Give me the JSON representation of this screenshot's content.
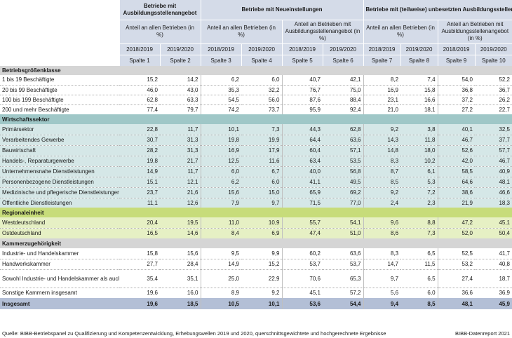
{
  "header": {
    "groups": [
      "Betriebe mit Ausbildungsstellenangebot",
      "Betriebe mit Neueinstellungen",
      "Betriebe mit (teilweise) unbesetzten Ausbildungsstellen"
    ],
    "sub_share_all": "Anteil an allen Betrieben (in %)",
    "sub_share_offer": "Anteil an Betrieben mit Ausbildungsstellenangebot (in %)",
    "years": [
      "2018/2019",
      "2019/2020",
      "2018/2019",
      "2019/2020",
      "2018/2019",
      "2019/2020",
      "2018/2019",
      "2019/2020",
      "2018/2019",
      "2019/2020"
    ],
    "columns": [
      "Spalte 1",
      "Spalte 2",
      "Spalte 3",
      "Spalte 4",
      "Spalte 5",
      "Spalte 6",
      "Spalte 7",
      "Spalte 8",
      "Spalte 9",
      "Spalte 10"
    ]
  },
  "sections": [
    {
      "title": "Betriebsgrößenklasse",
      "rows": [
        {
          "label": "1 bis 19 Beschäftigte",
          "values": [
            "15,2",
            "14,2",
            "6,2",
            "6,0",
            "40,7",
            "42,1",
            "8,2",
            "7,4",
            "54,0",
            "52,2"
          ]
        },
        {
          "label": "20 bis 99 Beschäftigte",
          "values": [
            "46,0",
            "43,0",
            "35,3",
            "32,2",
            "76,7",
            "75,0",
            "16,9",
            "15,8",
            "36,8",
            "36,7"
          ]
        },
        {
          "label": "100 bis 199 Beschäftigte",
          "values": [
            "62,8",
            "63,3",
            "54,5",
            "56,0",
            "87,6",
            "88,4",
            "23,1",
            "16,6",
            "37,2",
            "26,2"
          ]
        },
        {
          "label": "200 und mehr Beschäftigte",
          "values": [
            "77,4",
            "79,7",
            "74,2",
            "73,7",
            "95,9",
            "92,4",
            "21,0",
            "18,1",
            "27,2",
            "22,7"
          ]
        }
      ]
    },
    {
      "title": "Wirtschaftssektor",
      "rows": [
        {
          "label": "Primärsektor",
          "values": [
            "22,8",
            "11,7",
            "10,1",
            "7,3",
            "44,3",
            "62,8",
            "9,2",
            "3,8",
            "40,1",
            "32,5"
          ]
        },
        {
          "label": "Verarbeitendes Gewerbe",
          "values": [
            "30,7",
            "31,3",
            "19,8",
            "19,9",
            "64,4",
            "63,6",
            "14,3",
            "11,8",
            "46,7",
            "37,7"
          ]
        },
        {
          "label": "Bauwirtschaft",
          "values": [
            "28,2",
            "31,3",
            "16,9",
            "17,9",
            "60,4",
            "57,1",
            "14,8",
            "18,0",
            "52,6",
            "57,7"
          ]
        },
        {
          "label": "Handels-, Reparaturgewerbe",
          "values": [
            "19,8",
            "21,7",
            "12,5",
            "11,6",
            "63,4",
            "53,5",
            "8,3",
            "10,2",
            "42,0",
            "46,7"
          ]
        },
        {
          "label": "Unternehmensnahe Dienstleistungen",
          "values": [
            "14,9",
            "11,7",
            "6,0",
            "6,7",
            "40,0",
            "56,8",
            "8,7",
            "6,1",
            "58,5",
            "40,9"
          ]
        },
        {
          "label": "Personenbezogene Dienstleistungen",
          "values": [
            "15,1",
            "12,1",
            "6,2",
            "6,0",
            "41,1",
            "49,5",
            "8,5",
            "5,3",
            "64,6",
            "48,1"
          ]
        },
        {
          "label": "Medizinische und pflegerische Dienstleistungen",
          "values": [
            "23,7",
            "21,6",
            "15,6",
            "15,0",
            "65,9",
            "69,2",
            "9,2",
            "7,2",
            "38,6",
            "46,6"
          ]
        },
        {
          "label": "Öffentliche Dienstleistungen",
          "values": [
            "11,1",
            "12,6",
            "7,9",
            "9,7",
            "71,5",
            "77,0",
            "2,4",
            "2,3",
            "21,9",
            "18,3"
          ]
        }
      ]
    },
    {
      "title": "Regionaleinheit",
      "rows": [
        {
          "label": "Westdeutschland",
          "values": [
            "20,4",
            "19,5",
            "11,0",
            "10,9",
            "55,7",
            "54,1",
            "9,6",
            "8,8",
            "47,2",
            "45,1"
          ]
        },
        {
          "label": "Ostdeutschland",
          "values": [
            "16,5",
            "14,6",
            "8,4",
            "6,9",
            "47,4",
            "51,0",
            "8,6",
            "7,3",
            "52,0",
            "50,4"
          ]
        }
      ]
    },
    {
      "title": "Kammerzugehörigkeit",
      "rows": [
        {
          "label": "Industrie- und Handelskammer",
          "values": [
            "15,8",
            "15,6",
            "9,5",
            "9,9",
            "60,2",
            "63,6",
            "8,3",
            "6,5",
            "52,5",
            "41,7"
          ]
        },
        {
          "label": "Handwerkskammer",
          "values": [
            "27,7",
            "28,4",
            "14,9",
            "15,2",
            "53,7",
            "53,7",
            "14,7",
            "11,5",
            "53,2",
            "40,8"
          ]
        },
        {
          "label": "Sowohl Industrie- und Handelskammer als auch Handwerkskammer",
          "values": [
            "35,4",
            "35,1",
            "25,0",
            "22,9",
            "70,6",
            "65,3",
            "9,7",
            "6,5",
            "27,4",
            "18,7"
          ]
        },
        {
          "label": "Sonstige Kammern insgesamt",
          "values": [
            "19,6",
            "16,0",
            "8,9",
            "9,2",
            "45,1",
            "57,2",
            "5,6",
            "6,0",
            "36,6",
            "36,9"
          ]
        }
      ]
    }
  ],
  "total": {
    "label": "Insgesamt",
    "values": [
      "19,6",
      "18,5",
      "10,5",
      "10,1",
      "53,6",
      "54,4",
      "9,4",
      "8,5",
      "48,1",
      "45,9"
    ]
  },
  "footer": {
    "source": "Quelle: BIBB-Betriebspanel zu Qualifizierung und Kompetenzentwicklung, Erhebungswellen 2019 und 2020, querschnittsgewichtete und hochgerechnete Ergebnisse",
    "brand": "BIBB-Datenreport 2021"
  },
  "colors": {
    "header": "#d4dbe8",
    "section_gray": "#d5d5d5",
    "section_teal": "#9fc7c7",
    "row_teal": "#d5e7e7",
    "section_green": "#c7dc7a",
    "row_green": "#e6f0c4",
    "total": "#b3bfd6"
  }
}
